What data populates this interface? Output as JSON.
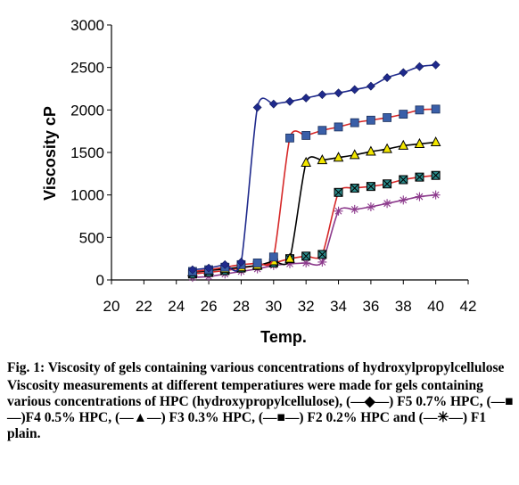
{
  "chart_data": {
    "type": "line",
    "xlabel": "Temp.",
    "ylabel": "Viscosity cP",
    "xlim": [
      20,
      42
    ],
    "ylim": [
      0,
      3000
    ],
    "xticks": [
      20,
      22,
      24,
      26,
      28,
      30,
      32,
      34,
      36,
      38,
      40,
      42
    ],
    "yticks": [
      0,
      500,
      1000,
      1500,
      2000,
      2500,
      3000
    ],
    "grid": false,
    "series": [
      {
        "name": "F5 0.7% HPC",
        "line_color": "#1f2a8c",
        "marker": "diamond",
        "marker_color": "#1f2a8c",
        "x": [
          25,
          26,
          27,
          28,
          29,
          30,
          31,
          32,
          33,
          34,
          35,
          36,
          37,
          38,
          39,
          40
        ],
        "y": [
          120,
          140,
          180,
          210,
          2030,
          2070,
          2100,
          2140,
          2180,
          2200,
          2240,
          2280,
          2380,
          2440,
          2510,
          2530
        ]
      },
      {
        "name": "F4 0.5% HPC",
        "line_color": "#d62828",
        "marker": "square",
        "marker_color": "#3a5fa8",
        "x": [
          25,
          26,
          27,
          28,
          29,
          30,
          31,
          32,
          33,
          34,
          35,
          36,
          37,
          38,
          39,
          40
        ],
        "y": [
          100,
          120,
          150,
          180,
          200,
          270,
          1670,
          1700,
          1760,
          1800,
          1850,
          1880,
          1910,
          1950,
          2000,
          2010
        ]
      },
      {
        "name": "F3 0.3% HPC",
        "line_color": "#000000",
        "marker": "triangle",
        "marker_color": "#f2e600",
        "x": [
          25,
          26,
          27,
          28,
          29,
          30,
          31,
          32,
          33,
          34,
          35,
          36,
          37,
          38,
          39,
          40
        ],
        "y": [
          90,
          110,
          130,
          150,
          170,
          220,
          250,
          1380,
          1410,
          1440,
          1470,
          1510,
          1540,
          1580,
          1600,
          1620
        ]
      },
      {
        "name": "F2 0.2% HPC",
        "line_color": "#d62828",
        "marker": "xsquare",
        "marker_color": "#2a8a8a",
        "x": [
          25,
          26,
          27,
          28,
          29,
          30,
          31,
          32,
          33,
          34,
          35,
          36,
          37,
          38,
          39,
          40
        ],
        "y": [
          70,
          90,
          110,
          140,
          170,
          200,
          250,
          280,
          300,
          1030,
          1080,
          1100,
          1130,
          1180,
          1210,
          1230
        ]
      },
      {
        "name": "F1 plain",
        "line_color": "#8c3a8c",
        "marker": "asterisk",
        "marker_color": "#8c3a8c",
        "x": [
          25,
          26,
          27,
          28,
          29,
          30,
          31,
          32,
          33,
          34,
          35,
          36,
          37,
          38,
          39,
          40
        ],
        "y": [
          30,
          40,
          70,
          100,
          130,
          170,
          190,
          200,
          210,
          810,
          830,
          860,
          900,
          940,
          980,
          1000
        ]
      }
    ]
  },
  "caption": {
    "title": "Fig. 1: Viscosity of gels containing various concentrations of hydroxylpropylcellulose",
    "body": "Viscosity measurements at different temperatiures were made for gels containing various concentrations of HPC (hydroxypropylcellulose), (—◆—) F5 0.7% HPC, (—■—)F4 0.5% HPC, (—▲—) F3 0.3% HPC, (—■—) F2 0.2% HPC and (—✳—) F1 plain."
  }
}
